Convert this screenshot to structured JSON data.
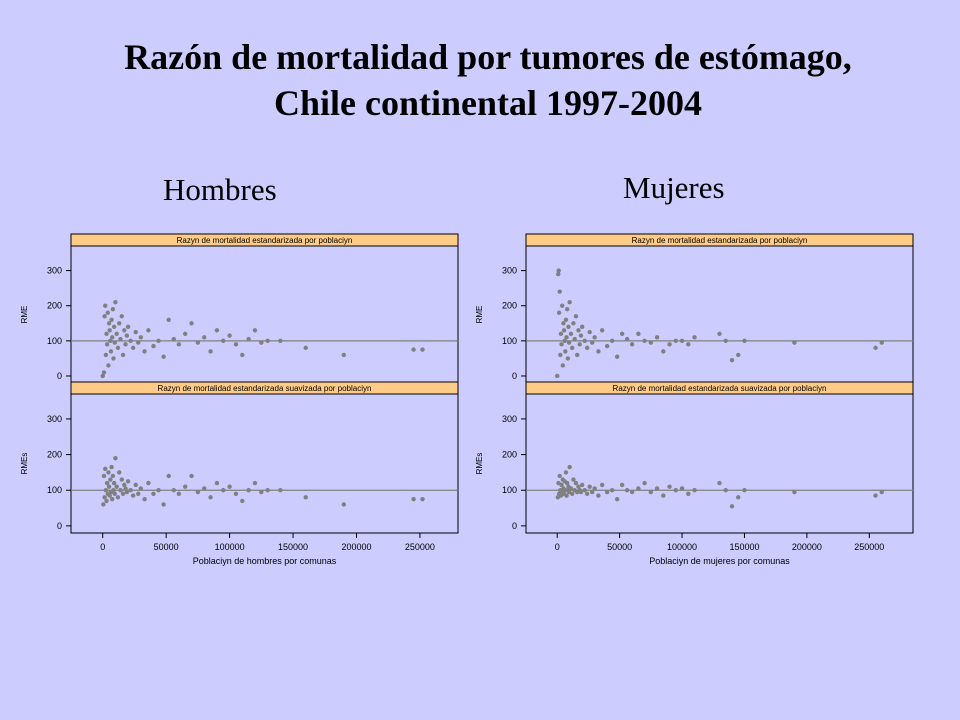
{
  "title_line1": "Razón de mortalidad por tumores de estómago,",
  "title_line2": "Chile continental 1997-2004",
  "panels": [
    {
      "label": "Hombres"
    },
    {
      "label": "Mujeres"
    }
  ],
  "colors": {
    "background": "#ccccff",
    "strip": "#ffcc88",
    "points": "#808080",
    "reference_line": "#808080"
  },
  "chart_data": [
    {
      "type": "scatter",
      "group": "Hombres",
      "xlabel": "Poblaciyn  de hombres por comunas",
      "xticks": [
        0,
        50000,
        100000,
        150000,
        200000,
        250000
      ],
      "xtick_labels": [
        "0",
        "50000",
        "100000",
        "150000",
        "200000",
        "250000"
      ],
      "xlim": [
        -25000,
        280000
      ],
      "grid": false,
      "subplots": [
        {
          "strip": "Razyn de mortalidad estandarizada por poblaciyn",
          "ylabel": "RME",
          "ylim": [
            -20,
            370
          ],
          "yticks": [
            0,
            100,
            200,
            300
          ],
          "ytick_labels": [
            "0",
            "100",
            "200",
            "300"
          ],
          "reference_y": 100,
          "points": [
            [
              0,
              0
            ],
            [
              1000,
              10
            ],
            [
              1500,
              170
            ],
            [
              2000,
              200
            ],
            [
              2500,
              60
            ],
            [
              3000,
              120
            ],
            [
              3500,
              90
            ],
            [
              4000,
              180
            ],
            [
              4500,
              30
            ],
            [
              5000,
              150
            ],
            [
              5500,
              130
            ],
            [
              6000,
              100
            ],
            [
              6500,
              70
            ],
            [
              7000,
              160
            ],
            [
              7500,
              110
            ],
            [
              8000,
              190
            ],
            [
              8500,
              50
            ],
            [
              9000,
              140
            ],
            [
              9500,
              95
            ],
            [
              10000,
              210
            ],
            [
              11000,
              120
            ],
            [
              12000,
              80
            ],
            [
              13000,
              150
            ],
            [
              14000,
              105
            ],
            [
              15000,
              170
            ],
            [
              16000,
              60
            ],
            [
              17000,
              130
            ],
            [
              18000,
              90
            ],
            [
              19000,
              115
            ],
            [
              20000,
              140
            ],
            [
              22000,
              100
            ],
            [
              24000,
              80
            ],
            [
              26000,
              125
            ],
            [
              28000,
              95
            ],
            [
              30000,
              110
            ],
            [
              33000,
              70
            ],
            [
              36000,
              130
            ],
            [
              40000,
              85
            ],
            [
              44000,
              100
            ],
            [
              48000,
              55
            ],
            [
              52000,
              160
            ],
            [
              56000,
              105
            ],
            [
              60000,
              90
            ],
            [
              65000,
              120
            ],
            [
              70000,
              150
            ],
            [
              75000,
              95
            ],
            [
              80000,
              110
            ],
            [
              85000,
              70
            ],
            [
              90000,
              130
            ],
            [
              95000,
              100
            ],
            [
              100000,
              115
            ],
            [
              105000,
              90
            ],
            [
              110000,
              60
            ],
            [
              115000,
              105
            ],
            [
              120000,
              130
            ],
            [
              125000,
              95
            ],
            [
              130000,
              100
            ],
            [
              140000,
              100
            ],
            [
              160000,
              80
            ],
            [
              190000,
              60
            ],
            [
              245000,
              75
            ],
            [
              252000,
              75
            ]
          ]
        },
        {
          "strip": "Razyn de mortalidad estandarizada suavizada por poblaciyn",
          "ylabel": "RMEs",
          "ylim": [
            -20,
            370
          ],
          "yticks": [
            0,
            100,
            200,
            300
          ],
          "ytick_labels": [
            "0",
            "100",
            "200",
            "300"
          ],
          "reference_y": 100,
          "points": [
            [
              500,
              60
            ],
            [
              1000,
              140
            ],
            [
              1500,
              80
            ],
            [
              2000,
              160
            ],
            [
              2500,
              100
            ],
            [
              3000,
              70
            ],
            [
              3500,
              120
            ],
            [
              4000,
              90
            ],
            [
              4500,
              150
            ],
            [
              5000,
              110
            ],
            [
              5500,
              85
            ],
            [
              6000,
              130
            ],
            [
              6500,
              95
            ],
            [
              7000,
              165
            ],
            [
              7500,
              75
            ],
            [
              8000,
              140
            ],
            [
              8500,
              100
            ],
            [
              9000,
              120
            ],
            [
              9500,
              90
            ],
            [
              10000,
              190
            ],
            [
              11000,
              110
            ],
            [
              12000,
              80
            ],
            [
              13000,
              150
            ],
            [
              14000,
              100
            ],
            [
              15000,
              130
            ],
            [
              16000,
              90
            ],
            [
              17000,
              115
            ],
            [
              18000,
              105
            ],
            [
              19000,
              95
            ],
            [
              20000,
              125
            ],
            [
              22000,
              100
            ],
            [
              24000,
              85
            ],
            [
              26000,
              115
            ],
            [
              28000,
              90
            ],
            [
              30000,
              105
            ],
            [
              33000,
              75
            ],
            [
              36000,
              120
            ],
            [
              40000,
              90
            ],
            [
              44000,
              100
            ],
            [
              48000,
              60
            ],
            [
              52000,
              140
            ],
            [
              56000,
              100
            ],
            [
              60000,
              90
            ],
            [
              65000,
              110
            ],
            [
              70000,
              140
            ],
            [
              75000,
              95
            ],
            [
              80000,
              105
            ],
            [
              85000,
              80
            ],
            [
              90000,
              120
            ],
            [
              95000,
              100
            ],
            [
              100000,
              110
            ],
            [
              105000,
              90
            ],
            [
              110000,
              70
            ],
            [
              115000,
              100
            ],
            [
              120000,
              120
            ],
            [
              125000,
              95
            ],
            [
              130000,
              100
            ],
            [
              140000,
              100
            ],
            [
              160000,
              80
            ],
            [
              190000,
              60
            ],
            [
              245000,
              75
            ],
            [
              252000,
              75
            ]
          ]
        }
      ]
    },
    {
      "type": "scatter",
      "group": "Mujeres",
      "xlabel": "Poblaciyn de mujeres por comunas",
      "xticks": [
        0,
        50000,
        100000,
        150000,
        200000,
        250000
      ],
      "xtick_labels": [
        "0",
        "50000",
        "100000",
        "150000",
        "200000",
        "250000"
      ],
      "xlim": [
        -25000,
        285000
      ],
      "grid": false,
      "subplots": [
        {
          "strip": "Razyn de mortalidad estandarizada por poblaciyn",
          "ylabel": "RME",
          "ylim": [
            -20,
            370
          ],
          "yticks": [
            0,
            100,
            200,
            300
          ],
          "ytick_labels": [
            "0",
            "100",
            "200",
            "300"
          ],
          "reference_y": 100,
          "points": [
            [
              0,
              0
            ],
            [
              800,
              290
            ],
            [
              1200,
              300
            ],
            [
              1500,
              180
            ],
            [
              2000,
              240
            ],
            [
              2500,
              60
            ],
            [
              3000,
              120
            ],
            [
              3500,
              90
            ],
            [
              4000,
              200
            ],
            [
              4500,
              30
            ],
            [
              5000,
              150
            ],
            [
              5500,
              130
            ],
            [
              6000,
              100
            ],
            [
              6500,
              70
            ],
            [
              7000,
              160
            ],
            [
              7500,
              110
            ],
            [
              8000,
              190
            ],
            [
              8500,
              50
            ],
            [
              9000,
              140
            ],
            [
              9500,
              95
            ],
            [
              10000,
              210
            ],
            [
              11000,
              120
            ],
            [
              12000,
              80
            ],
            [
              13000,
              150
            ],
            [
              14000,
              105
            ],
            [
              15000,
              170
            ],
            [
              16000,
              60
            ],
            [
              17000,
              130
            ],
            [
              18000,
              90
            ],
            [
              19000,
              115
            ],
            [
              20000,
              140
            ],
            [
              22000,
              100
            ],
            [
              24000,
              80
            ],
            [
              26000,
              125
            ],
            [
              28000,
              95
            ],
            [
              30000,
              110
            ],
            [
              33000,
              70
            ],
            [
              36000,
              130
            ],
            [
              40000,
              85
            ],
            [
              44000,
              100
            ],
            [
              48000,
              55
            ],
            [
              52000,
              120
            ],
            [
              56000,
              105
            ],
            [
              60000,
              90
            ],
            [
              65000,
              120
            ],
            [
              70000,
              100
            ],
            [
              75000,
              95
            ],
            [
              80000,
              110
            ],
            [
              85000,
              70
            ],
            [
              90000,
              90
            ],
            [
              95000,
              100
            ],
            [
              100000,
              100
            ],
            [
              105000,
              90
            ],
            [
              110000,
              110
            ],
            [
              130000,
              120
            ],
            [
              135000,
              100
            ],
            [
              140000,
              45
            ],
            [
              145000,
              60
            ],
            [
              150000,
              100
            ],
            [
              190000,
              95
            ],
            [
              255000,
              80
            ],
            [
              260000,
              95
            ]
          ]
        },
        {
          "strip": "Razyn de mortalidad estandarizada suavizada por poblaciyn",
          "ylabel": "RMEs",
          "ylim": [
            -20,
            370
          ],
          "yticks": [
            0,
            100,
            200,
            300
          ],
          "ytick_labels": [
            "0",
            "100",
            "200",
            "300"
          ],
          "reference_y": 100,
          "points": [
            [
              500,
              80
            ],
            [
              1000,
              120
            ],
            [
              1500,
              90
            ],
            [
              2000,
              140
            ],
            [
              2500,
              100
            ],
            [
              3000,
              85
            ],
            [
              3500,
              115
            ],
            [
              4000,
              95
            ],
            [
              4500,
              130
            ],
            [
              5000,
              105
            ],
            [
              5500,
              90
            ],
            [
              6000,
              125
            ],
            [
              6500,
              100
            ],
            [
              7000,
              150
            ],
            [
              7500,
              85
            ],
            [
              8000,
              120
            ],
            [
              8500,
              100
            ],
            [
              9000,
              110
            ],
            [
              9500,
              95
            ],
            [
              10000,
              165
            ],
            [
              11000,
              105
            ],
            [
              12000,
              90
            ],
            [
              13000,
              130
            ],
            [
              14000,
              100
            ],
            [
              15000,
              120
            ],
            [
              16000,
              95
            ],
            [
              17000,
              110
            ],
            [
              18000,
              100
            ],
            [
              19000,
              95
            ],
            [
              20000,
              115
            ],
            [
              22000,
              100
            ],
            [
              24000,
              90
            ],
            [
              26000,
              110
            ],
            [
              28000,
              95
            ],
            [
              30000,
              105
            ],
            [
              33000,
              85
            ],
            [
              36000,
              115
            ],
            [
              40000,
              95
            ],
            [
              44000,
              100
            ],
            [
              48000,
              75
            ],
            [
              52000,
              115
            ],
            [
              56000,
              100
            ],
            [
              60000,
              95
            ],
            [
              65000,
              105
            ],
            [
              70000,
              120
            ],
            [
              75000,
              95
            ],
            [
              80000,
              105
            ],
            [
              85000,
              85
            ],
            [
              90000,
              110
            ],
            [
              95000,
              100
            ],
            [
              100000,
              105
            ],
            [
              105000,
              90
            ],
            [
              110000,
              100
            ],
            [
              130000,
              120
            ],
            [
              135000,
              100
            ],
            [
              140000,
              55
            ],
            [
              145000,
              80
            ],
            [
              150000,
              100
            ],
            [
              190000,
              95
            ],
            [
              255000,
              85
            ],
            [
              260000,
              95
            ]
          ]
        }
      ]
    }
  ]
}
